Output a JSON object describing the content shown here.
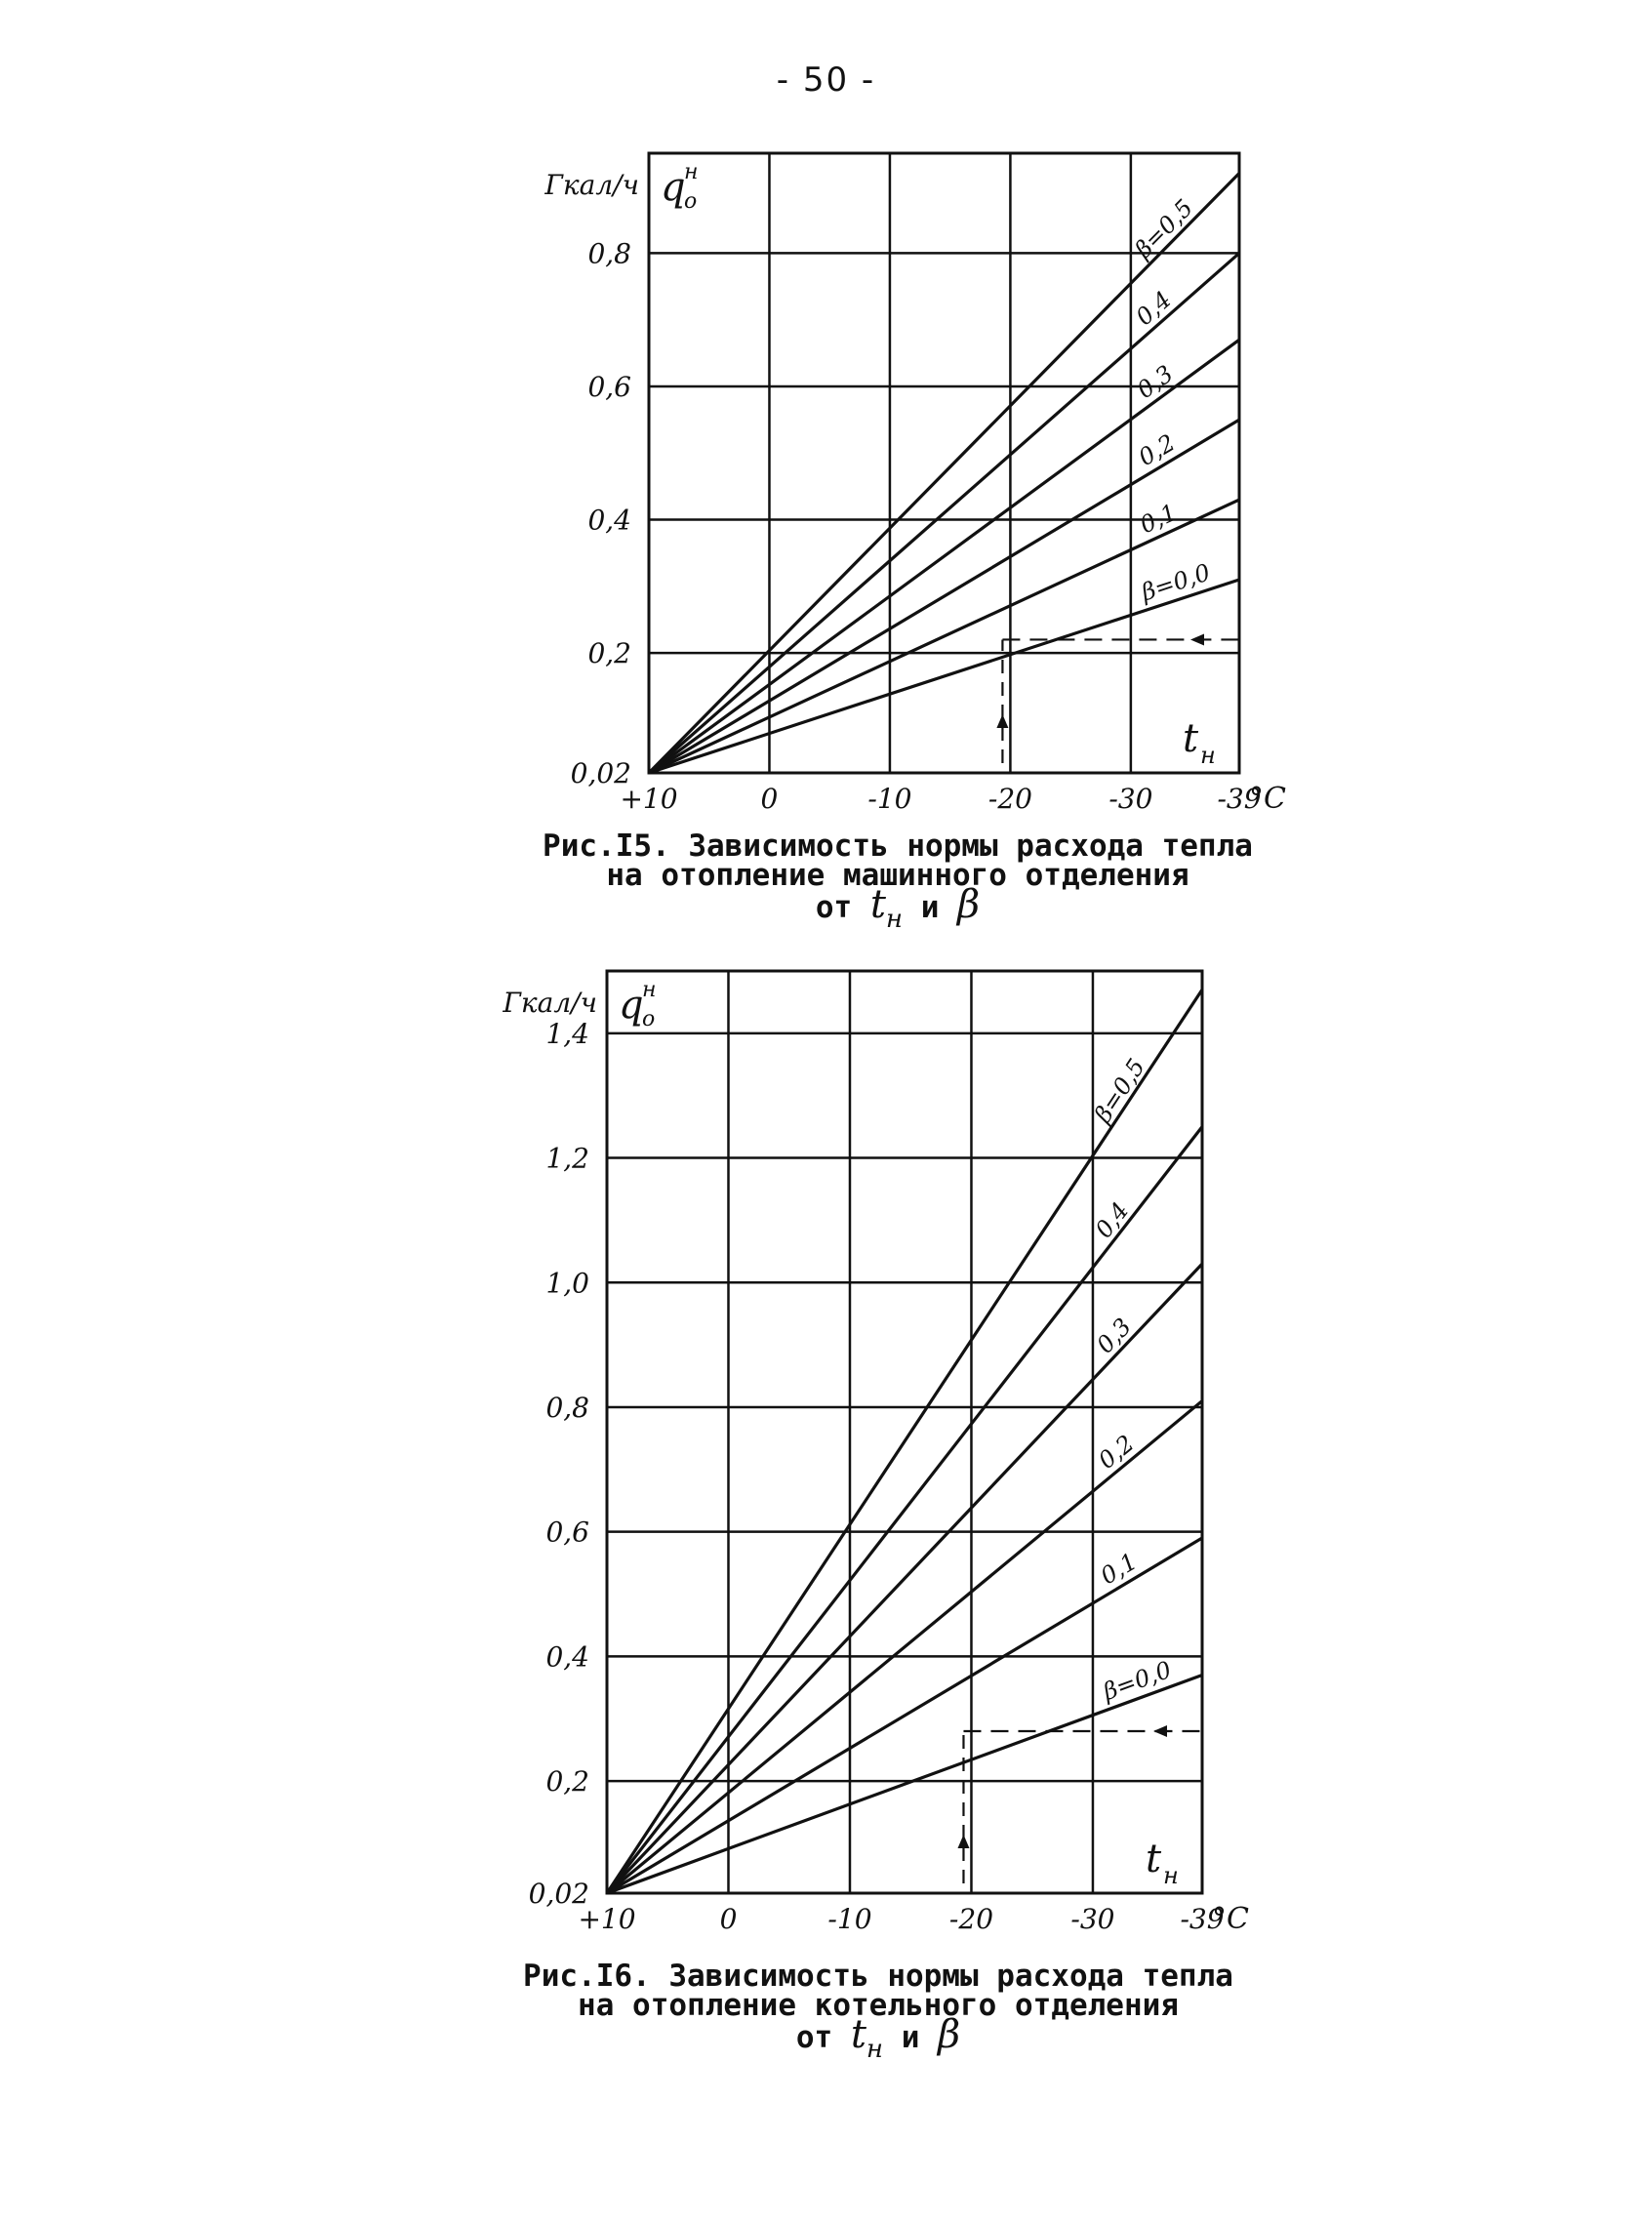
{
  "page": {
    "number": "- 50 -"
  },
  "chart_data": [
    {
      "type": "line",
      "figure_id": "15",
      "caption": {
        "line1": "Рис.I5. Зависимость нормы расхода тепла",
        "line2": "на отопление машинного отделения",
        "line3_prefix": "от",
        "line3_t": "t",
        "line3_t_sub": "н",
        "line3_and": "и",
        "line3_beta": "β"
      },
      "ylabel_units": "Гкал/ч",
      "ylabel_symbol": "q",
      "ylabel_symbol_sup": "н",
      "ylabel_symbol_sub": "о",
      "xlabel_symbol": "t",
      "xlabel_symbol_sub": "н",
      "x_unit": "°C",
      "xlim": [
        10,
        -39
      ],
      "ylim": [
        0.02,
        0.95
      ],
      "x_ticks": [
        {
          "value": 10,
          "label": "+10"
        },
        {
          "value": 0,
          "label": "0"
        },
        {
          "value": -10,
          "label": "-10"
        },
        {
          "value": -20,
          "label": "-20"
        },
        {
          "value": -30,
          "label": "-30"
        },
        {
          "value": -39,
          "label": "-39"
        }
      ],
      "y_ticks": [
        {
          "value": 0.02,
          "label": "0,02"
        },
        {
          "value": 0.2,
          "label": "0,2"
        },
        {
          "value": 0.4,
          "label": "0,4"
        },
        {
          "value": 0.6,
          "label": "0,6"
        },
        {
          "value": 0.8,
          "label": "0,8"
        }
      ],
      "grid": true,
      "series": [
        {
          "name": "β=0,0",
          "x": [
            10,
            -39
          ],
          "y": [
            0.02,
            0.31
          ]
        },
        {
          "name": "0,1",
          "x": [
            10,
            -39
          ],
          "y": [
            0.02,
            0.43
          ]
        },
        {
          "name": "0,2",
          "x": [
            10,
            -39
          ],
          "y": [
            0.02,
            0.55
          ]
        },
        {
          "name": "0,3",
          "x": [
            10,
            -39
          ],
          "y": [
            0.02,
            0.67
          ]
        },
        {
          "name": "0,4",
          "x": [
            10,
            -39
          ],
          "y": [
            0.02,
            0.8
          ]
        },
        {
          "name": "β=0,5",
          "x": [
            10,
            -39
          ],
          "y": [
            0.02,
            0.92
          ]
        }
      ],
      "annotation": {
        "x": -20,
        "y": 0.22,
        "style": "dashed"
      }
    },
    {
      "type": "line",
      "figure_id": "16",
      "caption": {
        "line1": "Рис.I6. Зависимость нормы расхода тепла",
        "line2": "на отопление котельного отделения",
        "line3_prefix": "от",
        "line3_t": "t",
        "line3_t_sub": "н",
        "line3_and": "и",
        "line3_beta": "β"
      },
      "ylabel_units": "Гкал/ч",
      "ylabel_symbol": "q",
      "ylabel_symbol_sup": "н",
      "ylabel_symbol_sub": "о",
      "xlabel_symbol": "t",
      "xlabel_symbol_sub": "н",
      "x_unit": "°C",
      "xlim": [
        10,
        -39
      ],
      "ylim": [
        0.02,
        1.5
      ],
      "x_ticks": [
        {
          "value": 10,
          "label": "+10"
        },
        {
          "value": 0,
          "label": "0"
        },
        {
          "value": -10,
          "label": "-10"
        },
        {
          "value": -20,
          "label": "-20"
        },
        {
          "value": -30,
          "label": "-30"
        },
        {
          "value": -39,
          "label": "-39"
        }
      ],
      "y_ticks": [
        {
          "value": 0.02,
          "label": "0,02"
        },
        {
          "value": 0.2,
          "label": "0,2"
        },
        {
          "value": 0.4,
          "label": "0,4"
        },
        {
          "value": 0.6,
          "label": "0,6"
        },
        {
          "value": 0.8,
          "label": "0,8"
        },
        {
          "value": 1.0,
          "label": "1,0"
        },
        {
          "value": 1.2,
          "label": "1,2"
        },
        {
          "value": 1.4,
          "label": "1,4"
        }
      ],
      "grid": true,
      "series": [
        {
          "name": "β=0,0",
          "x": [
            10,
            -39
          ],
          "y": [
            0.02,
            0.37
          ]
        },
        {
          "name": "0,1",
          "x": [
            10,
            -39
          ],
          "y": [
            0.02,
            0.59
          ]
        },
        {
          "name": "0,2",
          "x": [
            10,
            -39
          ],
          "y": [
            0.02,
            0.81
          ]
        },
        {
          "name": "0,3",
          "x": [
            10,
            -39
          ],
          "y": [
            0.02,
            1.03
          ]
        },
        {
          "name": "0,4",
          "x": [
            10,
            -39
          ],
          "y": [
            0.02,
            1.25
          ]
        },
        {
          "name": "β=0,5",
          "x": [
            10,
            -39
          ],
          "y": [
            0.02,
            1.47
          ]
        }
      ],
      "annotation": {
        "x": -20,
        "y": 0.28,
        "style": "dashed"
      }
    }
  ]
}
